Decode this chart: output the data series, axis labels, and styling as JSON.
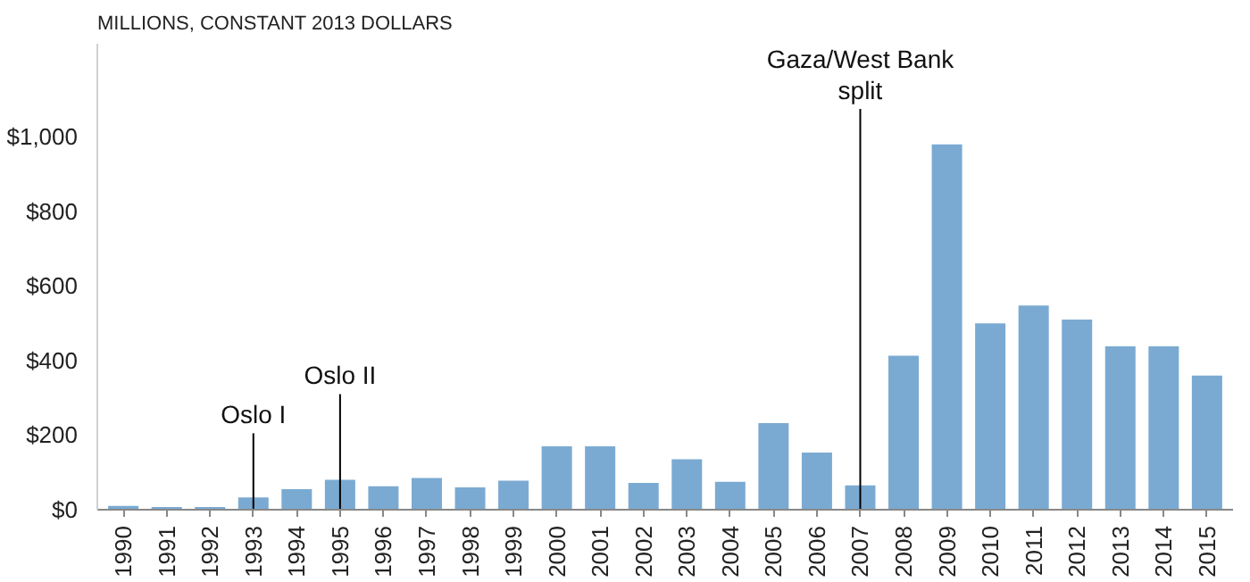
{
  "chart_data": {
    "type": "bar",
    "ylabel": "MILLIONS, CONSTANT 2013  DOLLARS",
    "categories": [
      "1990",
      "1991",
      "1992",
      "1993",
      "1994",
      "1995",
      "1996",
      "1997",
      "1998",
      "1999",
      "2000",
      "2001",
      "2002",
      "2003",
      "2004",
      "2005",
      "2006",
      "2007",
      "2008",
      "2009",
      "2010",
      "2011",
      "2012",
      "2013",
      "2014",
      "2015"
    ],
    "values": [
      10,
      7,
      7,
      33,
      55,
      80,
      63,
      85,
      60,
      78,
      170,
      170,
      72,
      135,
      75,
      232,
      153,
      65,
      413,
      980,
      500,
      548,
      510,
      438,
      438,
      360
    ],
    "color": "#7aaad2",
    "ylim": [
      0,
      1250
    ],
    "yticks": [
      {
        "value": 0,
        "label": "$0"
      },
      {
        "value": 200,
        "label": "$200"
      },
      {
        "value": 400,
        "label": "$400"
      },
      {
        "value": 600,
        "label": "$600"
      },
      {
        "value": 800,
        "label": "$800"
      },
      {
        "value": 1000,
        "label": "$1,000"
      }
    ],
    "grid": false,
    "ref_lines": [
      {
        "axis": "x",
        "value": "1993",
        "label": "Oslo I",
        "color": "#000000"
      },
      {
        "axis": "x",
        "value": "1995",
        "label": "Oslo II",
        "color": "#000000"
      },
      {
        "axis": "x",
        "value": "2007",
        "label": "Gaza/West Bank\nsplit",
        "color": "#000000"
      }
    ]
  }
}
